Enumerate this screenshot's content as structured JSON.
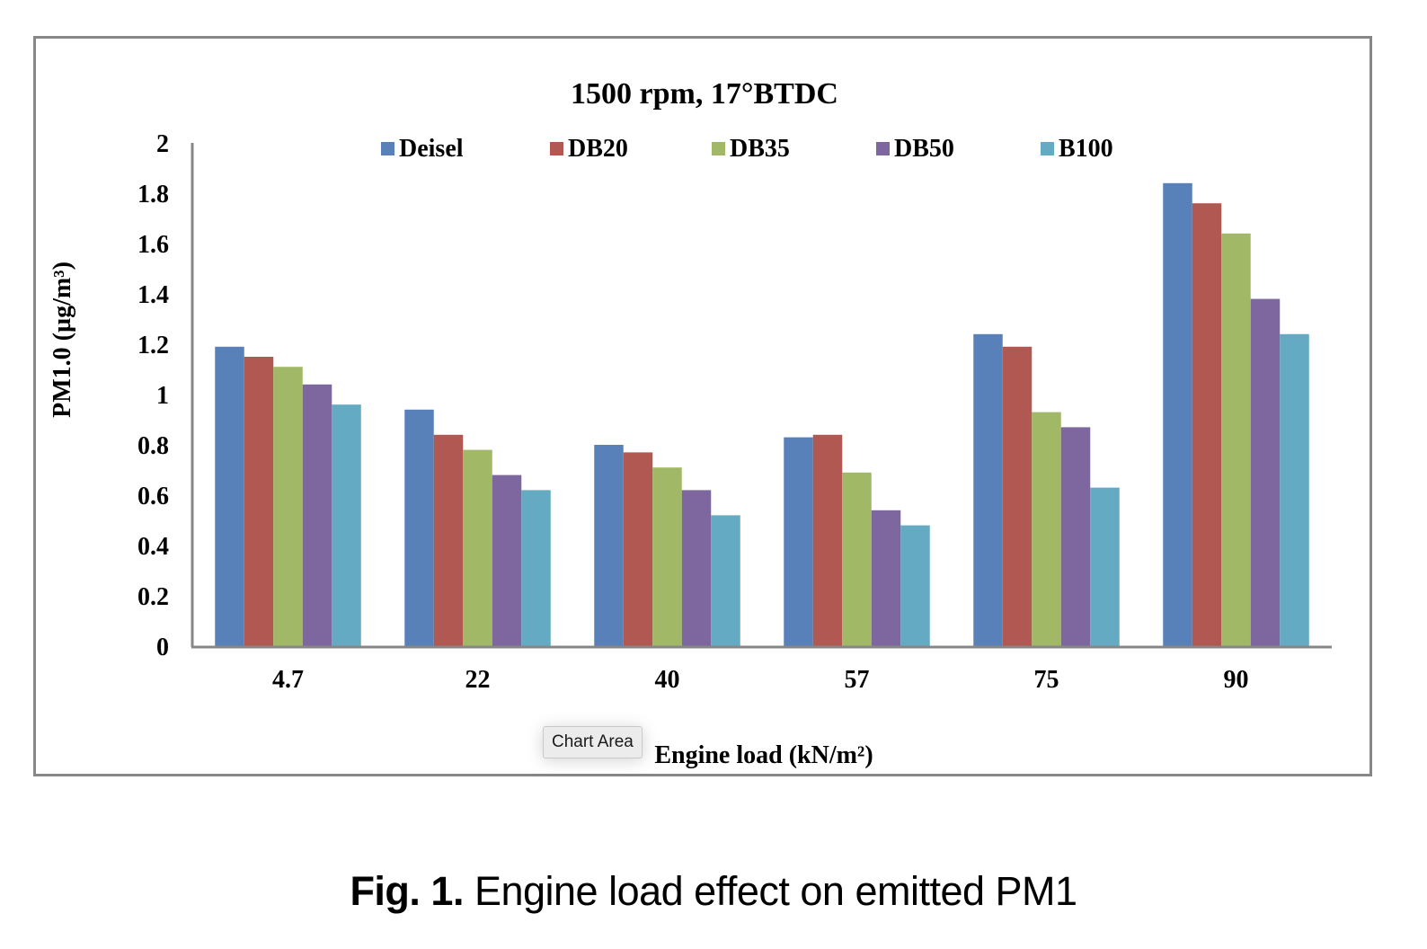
{
  "chart_data": {
    "type": "bar",
    "title": "1500 rpm, 17°BTDC",
    "xlabel": "Engine load (kN/m²)",
    "ylabel": "PM1.0 (µg/m³)",
    "categories": [
      "4.7",
      "22",
      "40",
      "57",
      "75",
      "90"
    ],
    "ylim": [
      0,
      2
    ],
    "yticks": [
      "0",
      "0.2",
      "0.4",
      "0.6",
      "0.8",
      "1",
      "1.2",
      "1.4",
      "1.6",
      "1.8",
      "2"
    ],
    "ytick_values": [
      0,
      0.2,
      0.4,
      0.6,
      0.8,
      1,
      1.2,
      1.4,
      1.6,
      1.8,
      2
    ],
    "grid": false,
    "legend_position": "top",
    "series": [
      {
        "name": "Deisel",
        "color": "#5880B9",
        "values": [
          1.19,
          0.94,
          0.8,
          0.83,
          1.24,
          1.84
        ]
      },
      {
        "name": "DB20",
        "color": "#B25852",
        "values": [
          1.15,
          0.84,
          0.77,
          0.84,
          1.19,
          1.76
        ]
      },
      {
        "name": "DB35",
        "color": "#A1B966",
        "values": [
          1.11,
          0.78,
          0.71,
          0.69,
          0.93,
          1.64
        ]
      },
      {
        "name": "DB50",
        "color": "#7E669E",
        "values": [
          1.04,
          0.68,
          0.62,
          0.54,
          0.87,
          1.38
        ]
      },
      {
        "name": "B100",
        "color": "#64AAC3",
        "values": [
          0.96,
          0.62,
          0.52,
          0.48,
          0.63,
          1.24
        ]
      }
    ]
  },
  "tooltip": {
    "text": "Chart Area"
  },
  "caption": {
    "label": "Fig. 1.",
    "text": " Engine load effect on emitted PM1"
  }
}
